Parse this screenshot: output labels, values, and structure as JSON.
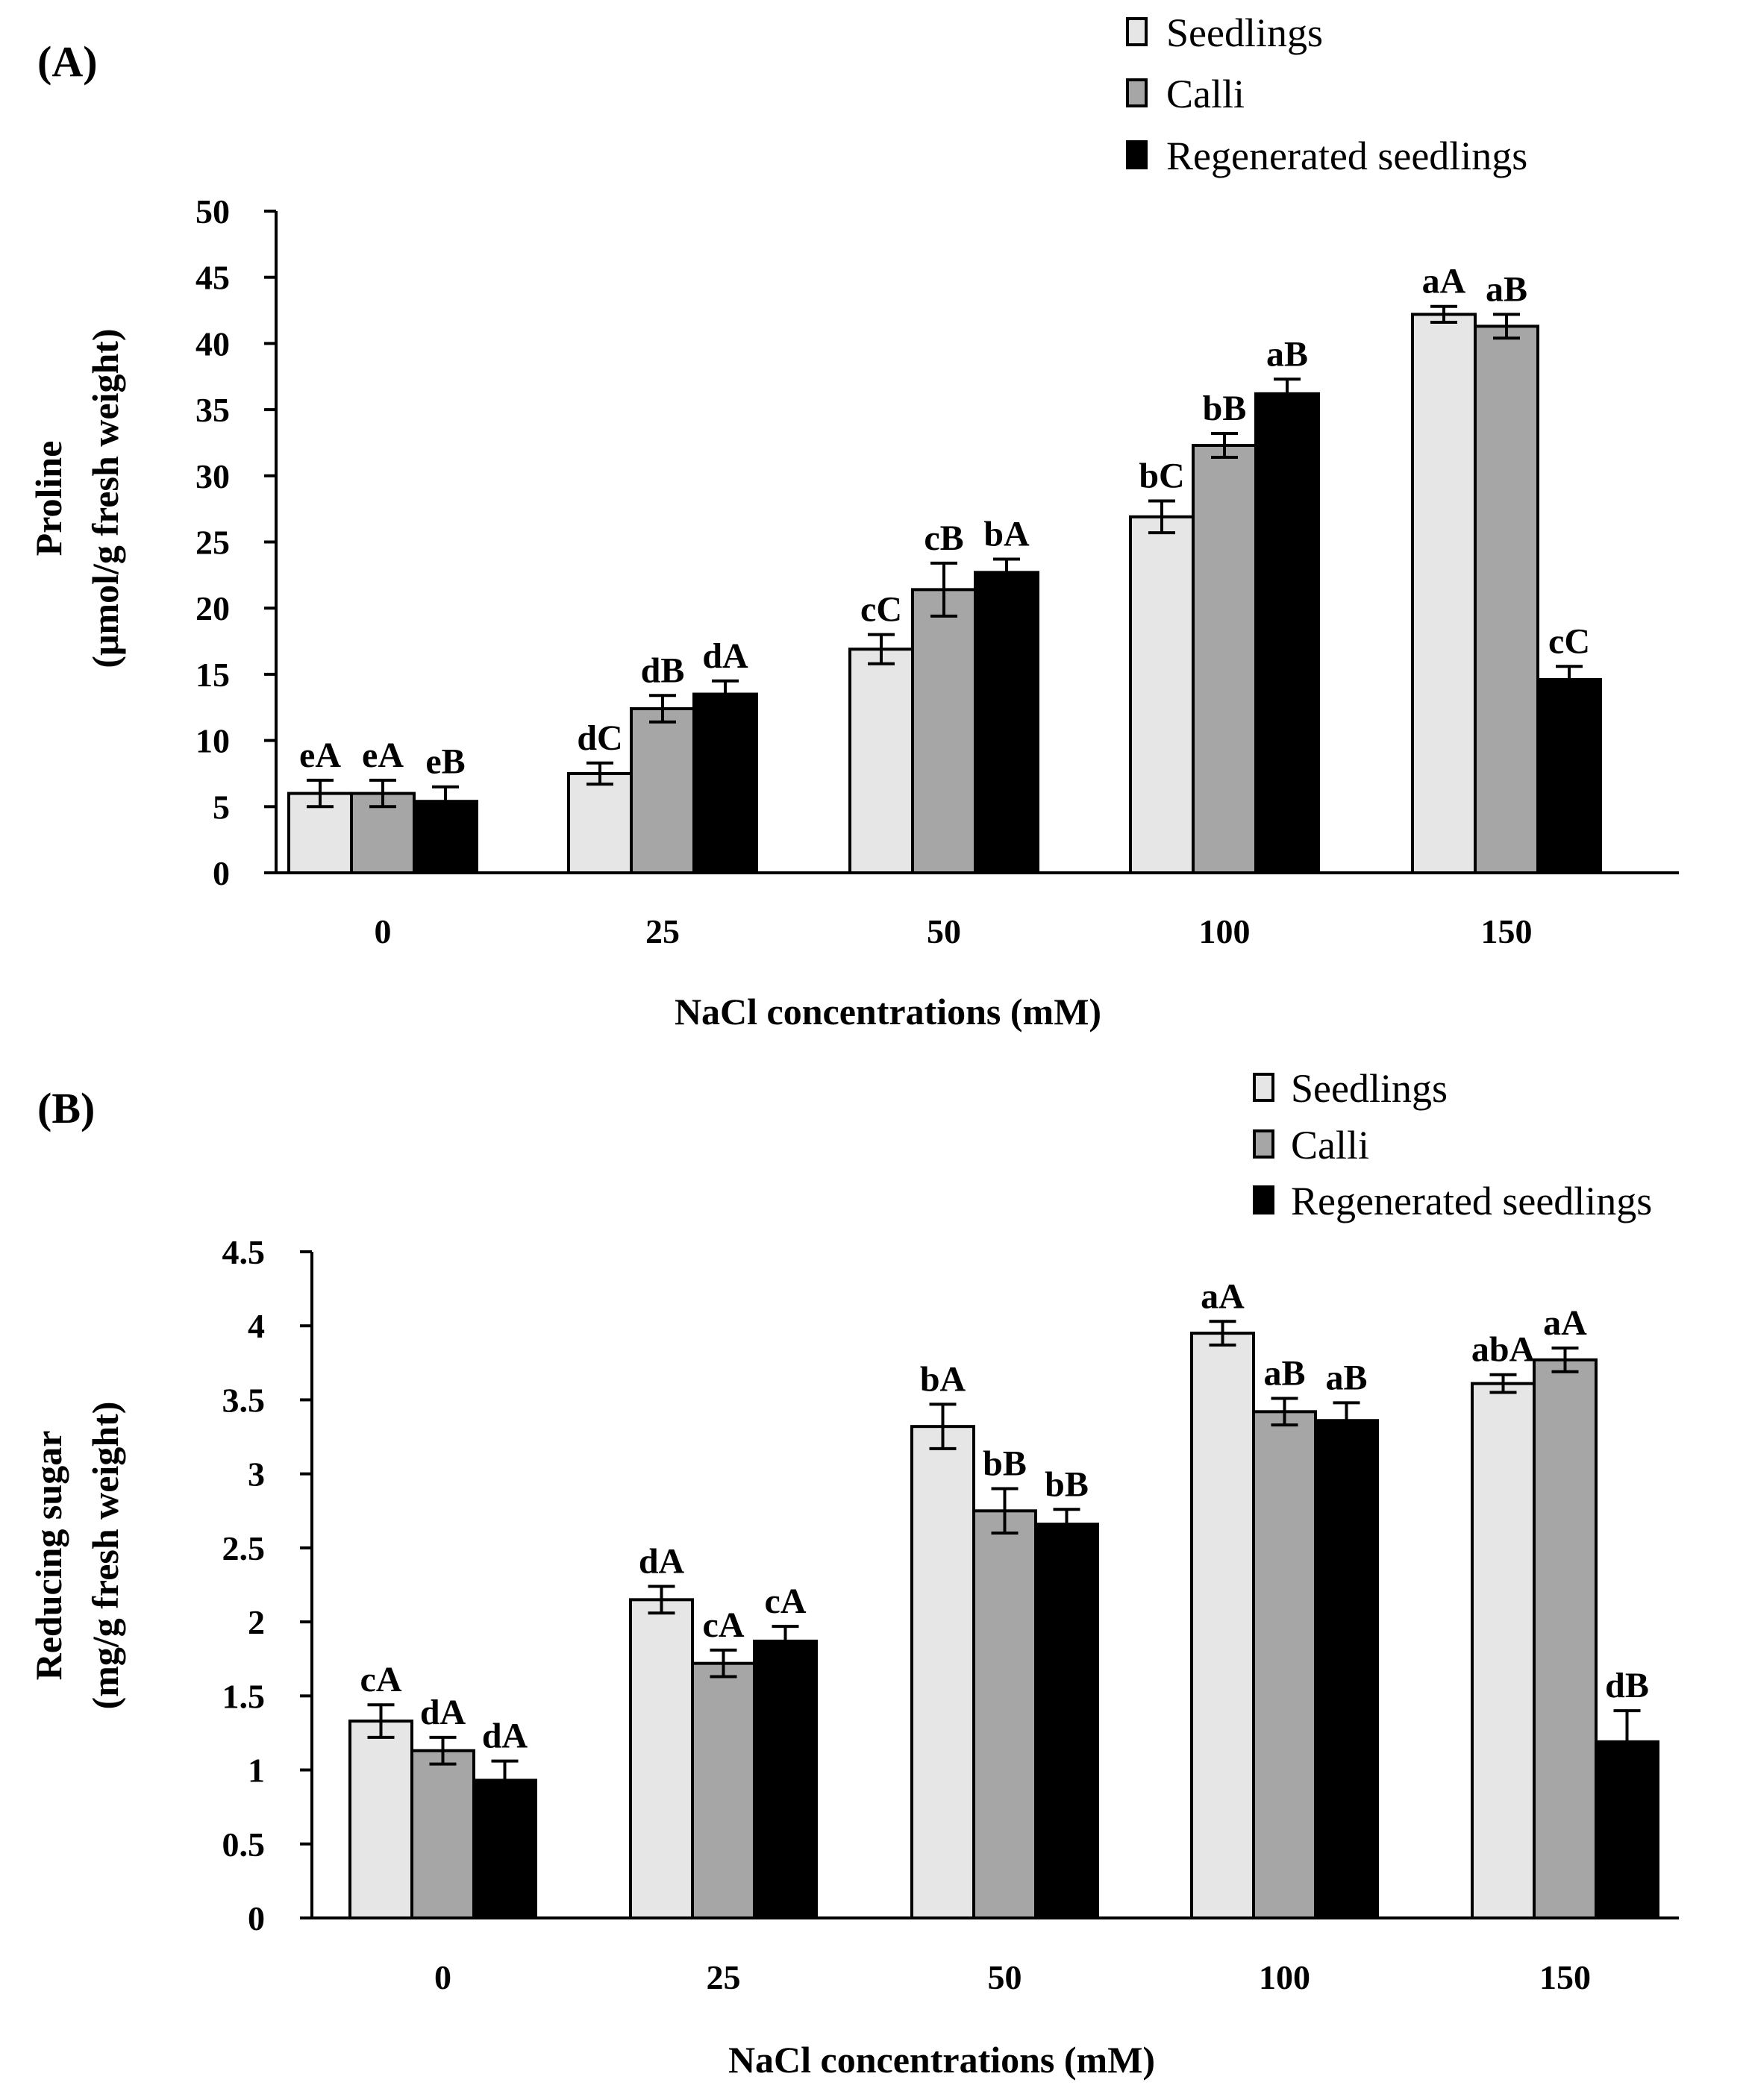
{
  "chart_data": [
    {
      "type": "bar",
      "panel_label": "(A)",
      "categories": [
        "0",
        "25",
        "50",
        "100",
        "150"
      ],
      "xlabel": "NaCl concentrations (mM)",
      "ylabel_line1": "Proline",
      "ylabel_line2": "(μmol/g fresh weight)",
      "ylim": [
        0,
        50
      ],
      "yticks": [
        "0",
        "5",
        "10",
        "15",
        "20",
        "25",
        "30",
        "35",
        "40",
        "45",
        "50"
      ],
      "yticks_values": [
        0,
        5,
        10,
        15,
        20,
        25,
        30,
        35,
        40,
        45,
        50
      ],
      "legend_position": "top-right",
      "series": [
        {
          "name": "Seedlings",
          "color": "#e6e6e6",
          "values": [
            6.0,
            7.5,
            16.9,
            26.9,
            42.2
          ],
          "errors": [
            1.0,
            0.8,
            1.1,
            1.2,
            0.6
          ],
          "labels": [
            "eA",
            "dC",
            "cC",
            "bC",
            "aA"
          ]
        },
        {
          "name": "Calli",
          "color": "#a6a6a6",
          "values": [
            6.0,
            12.4,
            21.4,
            32.3,
            41.3
          ],
          "errors": [
            1.0,
            1.0,
            2.0,
            0.9,
            0.9
          ],
          "labels": [
            "eA",
            "dB",
            "cB",
            "bB",
            "aB"
          ]
        },
        {
          "name": "Regenerated seedlings",
          "color": "#000000",
          "values": [
            5.4,
            13.5,
            22.7,
            36.2,
            14.6
          ],
          "errors": [
            1.1,
            1.0,
            1.0,
            1.1,
            1.0
          ],
          "labels": [
            "eB",
            "dA",
            "bA",
            "aB",
            "cC"
          ]
        }
      ]
    },
    {
      "type": "bar",
      "panel_label": "(B)",
      "categories": [
        "0",
        "25",
        "50",
        "100",
        "150"
      ],
      "xlabel": "NaCl concentrations (mM)",
      "ylabel_line1": "Reducing sugar",
      "ylabel_line2": "(mg/g fresh weight)",
      "ylim": [
        0,
        4.5
      ],
      "yticks": [
        "0",
        "0.5",
        "1",
        "1.5",
        "2",
        "2.5",
        "3",
        "3.5",
        "4",
        "4.5"
      ],
      "yticks_values": [
        0,
        0.5,
        1,
        1.5,
        2,
        2.5,
        3,
        3.5,
        4,
        4.5
      ],
      "legend_position": "top-right",
      "series": [
        {
          "name": "Seedlings",
          "color": "#e6e6e6",
          "values": [
            1.33,
            2.15,
            3.32,
            3.95,
            3.61
          ],
          "errors": [
            0.11,
            0.09,
            0.15,
            0.08,
            0.06
          ],
          "labels": [
            "cA",
            "dA",
            "bA",
            "aA",
            "abA"
          ]
        },
        {
          "name": "Calli",
          "color": "#a6a6a6",
          "values": [
            1.13,
            1.72,
            2.75,
            3.42,
            3.77
          ],
          "errors": [
            0.09,
            0.09,
            0.15,
            0.09,
            0.08
          ],
          "labels": [
            "dA",
            "cA",
            "bB",
            "aB",
            "aA"
          ]
        },
        {
          "name": "Regenerated seedlings",
          "color": "#000000",
          "values": [
            0.93,
            1.87,
            2.66,
            3.36,
            1.19
          ],
          "errors": [
            0.13,
            0.1,
            0.1,
            0.12,
            0.21
          ],
          "labels": [
            "dA",
            "cA",
            "bB",
            "aB",
            "dB"
          ]
        }
      ]
    }
  ]
}
